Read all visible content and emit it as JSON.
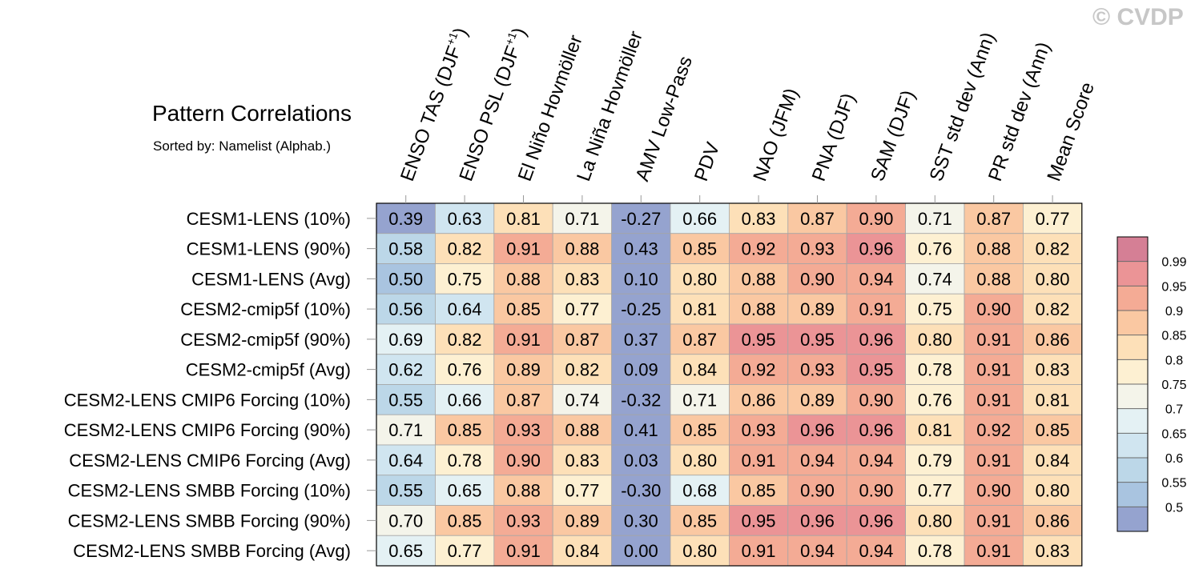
{
  "watermark": "© CVDP",
  "chart_data": {
    "type": "heatmap",
    "title": "Pattern Correlations",
    "subtitle": "Sorted by: Namelist (Alphab.)",
    "columns": [
      {
        "main": "ENSO TAS (DJF",
        "sup": "+1",
        "close": ")"
      },
      {
        "main": "ENSO PSL (DJF",
        "sup": "+1",
        "close": ")"
      },
      {
        "main": "El Niño Hovmöller",
        "sup": "",
        "close": ""
      },
      {
        "main": "La Niña Hovmöller",
        "sup": "",
        "close": ""
      },
      {
        "main": "AMV Low-Pass",
        "sup": "",
        "close": ""
      },
      {
        "main": "PDV",
        "sup": "",
        "close": ""
      },
      {
        "main": "NAO (JFM)",
        "sup": "",
        "close": ""
      },
      {
        "main": "PNA (DJF)",
        "sup": "",
        "close": ""
      },
      {
        "main": "SAM (DJF)",
        "sup": "",
        "close": ""
      },
      {
        "main": "SST std dev (Ann)",
        "sup": "",
        "close": ""
      },
      {
        "main": "PR std dev (Ann)",
        "sup": "",
        "close": ""
      },
      {
        "main": "Mean Score",
        "sup": "",
        "close": ""
      }
    ],
    "rows": [
      "CESM1-LENS (10%)",
      "CESM1-LENS (90%)",
      "CESM1-LENS (Avg)",
      "CESM2-cmip5f (10%)",
      "CESM2-cmip5f (90%)",
      "CESM2-cmip5f (Avg)",
      "CESM2-LENS CMIP6 Forcing (10%)",
      "CESM2-LENS CMIP6 Forcing (90%)",
      "CESM2-LENS CMIP6 Forcing (Avg)",
      "CESM2-LENS SMBB Forcing (10%)",
      "CESM2-LENS SMBB Forcing (90%)",
      "CESM2-LENS SMBB Forcing (Avg)"
    ],
    "values": [
      [
        "0.39",
        "0.63",
        "0.81",
        "0.71",
        "-0.27",
        "0.66",
        "0.83",
        "0.87",
        "0.90",
        "0.71",
        "0.87",
        "0.77"
      ],
      [
        "0.58",
        "0.82",
        "0.91",
        "0.88",
        "0.43",
        "0.85",
        "0.92",
        "0.93",
        "0.96",
        "0.76",
        "0.88",
        "0.82"
      ],
      [
        "0.50",
        "0.75",
        "0.88",
        "0.83",
        "0.10",
        "0.80",
        "0.88",
        "0.90",
        "0.94",
        "0.74",
        "0.88",
        "0.80"
      ],
      [
        "0.56",
        "0.64",
        "0.85",
        "0.77",
        "-0.25",
        "0.81",
        "0.88",
        "0.89",
        "0.91",
        "0.75",
        "0.90",
        "0.82"
      ],
      [
        "0.69",
        "0.82",
        "0.91",
        "0.87",
        "0.37",
        "0.87",
        "0.95",
        "0.95",
        "0.96",
        "0.80",
        "0.91",
        "0.86"
      ],
      [
        "0.62",
        "0.76",
        "0.89",
        "0.82",
        "0.09",
        "0.84",
        "0.92",
        "0.93",
        "0.95",
        "0.78",
        "0.91",
        "0.83"
      ],
      [
        "0.55",
        "0.66",
        "0.87",
        "0.74",
        "-0.32",
        "0.71",
        "0.86",
        "0.89",
        "0.90",
        "0.76",
        "0.91",
        "0.81"
      ],
      [
        "0.71",
        "0.85",
        "0.93",
        "0.88",
        "0.41",
        "0.85",
        "0.93",
        "0.96",
        "0.96",
        "0.81",
        "0.92",
        "0.85"
      ],
      [
        "0.64",
        "0.78",
        "0.90",
        "0.83",
        "0.03",
        "0.80",
        "0.91",
        "0.94",
        "0.94",
        "0.79",
        "0.91",
        "0.84"
      ],
      [
        "0.55",
        "0.65",
        "0.88",
        "0.77",
        "-0.30",
        "0.68",
        "0.85",
        "0.90",
        "0.90",
        "0.77",
        "0.90",
        "0.80"
      ],
      [
        "0.70",
        "0.85",
        "0.93",
        "0.89",
        "0.30",
        "0.85",
        "0.95",
        "0.96",
        "0.96",
        "0.80",
        "0.91",
        "0.86"
      ],
      [
        "0.65",
        "0.77",
        "0.91",
        "0.84",
        "0.00",
        "0.80",
        "0.91",
        "0.94",
        "0.94",
        "0.78",
        "0.91",
        "0.83"
      ]
    ],
    "colorbar": {
      "labels": [
        "0.99",
        "0.95",
        "0.9",
        "0.85",
        "0.8",
        "0.75",
        "0.7",
        "0.65",
        "0.6",
        "0.55",
        "0.5"
      ],
      "bounds": [
        0.5,
        0.55,
        0.6,
        0.65,
        0.7,
        0.75,
        0.8,
        0.85,
        0.9,
        0.95,
        0.99
      ],
      "colors": [
        "#95a3cf",
        "#a9c4e0",
        "#bcd7e8",
        "#d0e5f0",
        "#e4f1f4",
        "#f4f4ea",
        "#fdf0d2",
        "#fde0b8",
        "#fac8a2",
        "#f4ab95",
        "#eb9496",
        "#d57f95"
      ]
    }
  }
}
